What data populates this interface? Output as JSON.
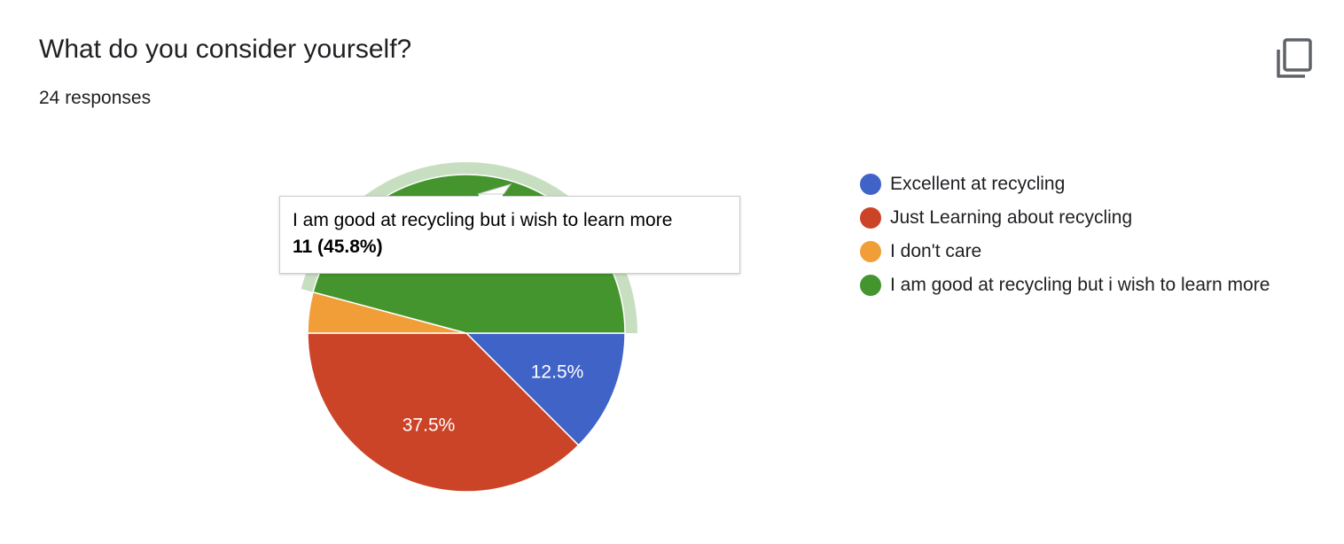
{
  "question": {
    "title": "What do you consider yourself?",
    "responses_label": "24 responses"
  },
  "icons": {
    "copy": "copy-icon"
  },
  "chart_data": {
    "type": "pie",
    "total": 24,
    "slices": [
      {
        "label": "Excellent at recycling",
        "count": 3,
        "percent": 12.5,
        "color": "#4063C7",
        "value_label": "12.5%"
      },
      {
        "label": "Just Learning about recycling",
        "count": 9,
        "percent": 37.5,
        "color": "#CC4428",
        "value_label": "37.5%"
      },
      {
        "label": "I don't care",
        "count": 1,
        "percent": 4.2,
        "color": "#F29E38",
        "value_label": ""
      },
      {
        "label": "I am good at recycling but i wish to learn more",
        "count": 11,
        "percent": 45.8,
        "color": "#45952F",
        "value_label": ""
      }
    ],
    "highlighted_slice": 3,
    "legend_position": "right"
  },
  "tooltip": {
    "label": "I am good at recycling but i wish to learn more",
    "value": "11 (45.8%)"
  }
}
